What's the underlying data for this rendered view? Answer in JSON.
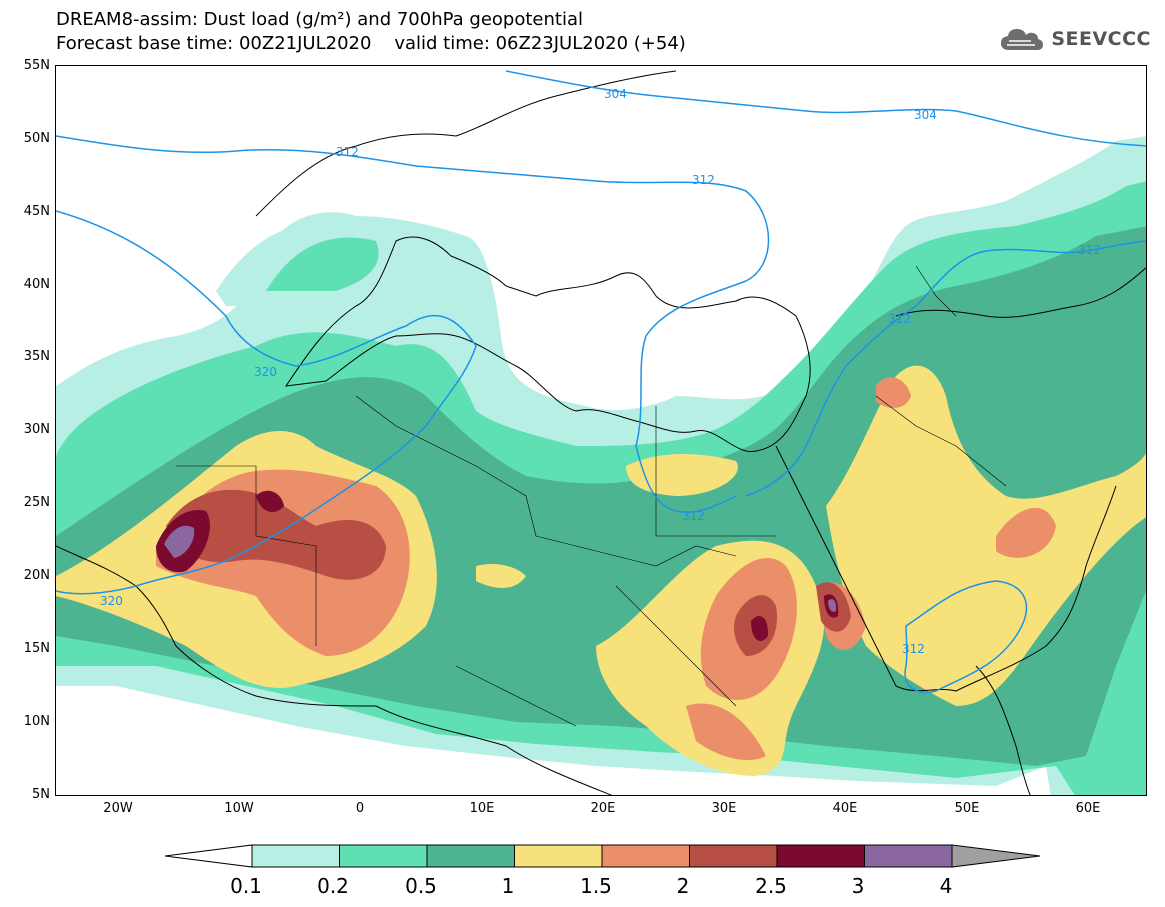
{
  "title": {
    "line1": "DREAM8-assim: Dust load (g/m²) and 700hPa geopotential",
    "line2": "Forecast base time: 00Z21JUL2020    valid time: 06Z23JUL2020 (+54)"
  },
  "logo": {
    "text": "SEEVCCC",
    "icon": "cloud-icon"
  },
  "axes": {
    "lat_labels": [
      "55N",
      "50N",
      "45N",
      "40N",
      "35N",
      "30N",
      "25N",
      "20N",
      "15N",
      "10N",
      "5N"
    ],
    "lon_labels": [
      "20W",
      "10W",
      "0",
      "10E",
      "20E",
      "30E",
      "40E",
      "50E",
      "60E"
    ]
  },
  "contours": {
    "labels": [
      "304",
      "304",
      "312",
      "312",
      "312",
      "312",
      "312",
      "312",
      "320",
      "320"
    ]
  },
  "colorbar": {
    "ticks": [
      "0.1",
      "0.2",
      "0.5",
      "1",
      "1.5",
      "2",
      "2.5",
      "3",
      "4"
    ],
    "colors": [
      "#b8efe4",
      "#5fe0b4",
      "#4db491",
      "#f7e17b",
      "#ea8f6a",
      "#b84f45",
      "#7b0a2e",
      "#8b67a0"
    ],
    "under_color": "#ffffff",
    "over_color": "#a0a0a0"
  },
  "palette": {
    "c1": "#b8efe4",
    "c2": "#5fe0b4",
    "c3": "#4db491",
    "c4": "#f7e17b",
    "c5": "#ea8f6a",
    "c6": "#b84f45",
    "c7": "#7b0a2e",
    "c8": "#8b67a0",
    "geopotential_line": "#1b93e8"
  }
}
